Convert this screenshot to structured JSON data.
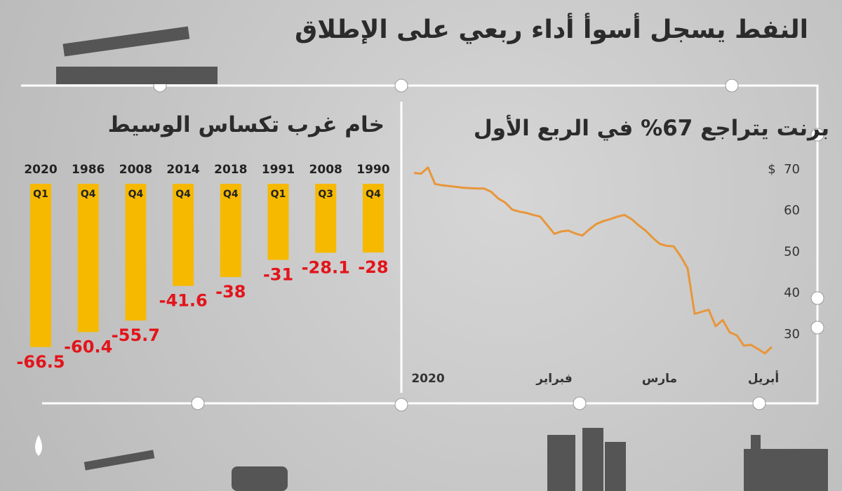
{
  "title": "النفط يسجل أسوأ أداء ربعي على الإطلاق",
  "chart_data": [
    {
      "type": "bar",
      "title": "خام غرب تكساس الوسيط",
      "categories": [
        "2020",
        "1986",
        "2008",
        "2014",
        "2018",
        "1991",
        "2008",
        "1990"
      ],
      "quarters": [
        "Q1",
        "Q4",
        "Q4",
        "Q4",
        "Q4",
        "Q1",
        "Q3",
        "Q4"
      ],
      "values": [
        -66.5,
        -60.4,
        -55.7,
        -41.6,
        -38,
        -31,
        -28.1,
        -28
      ],
      "color": "#f6b900",
      "label_color": "#e3141b"
    },
    {
      "type": "line",
      "title": "برنت يتراجع 67% في الربع الأول",
      "ylabel": "$",
      "values": [
        69.2,
        69,
        70.5,
        66.5,
        66.2,
        66,
        65.8,
        65.6,
        65.5,
        65.4,
        65.4,
        64.6,
        63,
        62,
        60.3,
        59.8,
        59.5,
        59,
        58.6,
        56.5,
        54.4,
        55,
        55.2,
        54.5,
        54,
        55.5,
        56.8,
        57.5,
        58,
        58.6,
        59,
        58,
        56.5,
        55.2,
        53.5,
        52,
        51.5,
        51.4,
        49,
        46,
        35,
        35.5,
        36,
        32,
        33.5,
        30.5,
        29.8,
        27.3,
        27.5,
        26.5,
        25.4,
        27
      ],
      "xticks": [
        {
          "value": 0,
          "label": "2020"
        },
        {
          "value": 18,
          "label": "فبراير"
        },
        {
          "value": 33,
          "label": "مارس"
        },
        {
          "value": 49,
          "label": "أبريل"
        }
      ],
      "ylim": [
        23,
        72
      ],
      "yticks": [
        30,
        40,
        50,
        60,
        70
      ],
      "color": "#e8963a"
    }
  ]
}
